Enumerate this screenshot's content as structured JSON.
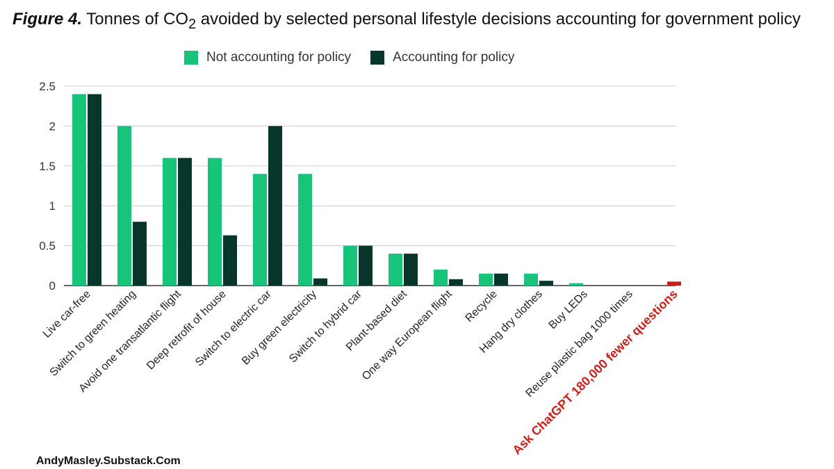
{
  "title": {
    "figure_label": "Figure 4.",
    "text_before": "Tonnes of CO",
    "subscript": "2",
    "text_after": " avoided by selected personal lifestyle decisions accounting for government policy"
  },
  "credit": "AndyMasley.Substack.Com",
  "colors": {
    "not_accounting": "#17c47a",
    "accounting": "#06372a",
    "highlight": "#cc1f1a",
    "grid": "#cccccc",
    "axis_text": "#333333"
  },
  "chart_data": {
    "type": "bar",
    "title": "Tonnes of CO₂ avoided by selected personal lifestyle decisions accounting for government policy",
    "xlabel": "",
    "ylabel": "",
    "ylim": [
      0,
      2.5
    ],
    "yticks": [
      "0",
      "0.5",
      "1",
      "1.5",
      "2",
      "2.5"
    ],
    "grid": true,
    "legend_position": "top",
    "categories": [
      "Live car-free",
      "Switch to green heating",
      "Avoid one transatlantic flight",
      "Deep retrofit of house",
      "Switch to electric car",
      "Buy green electricity",
      "Switch to hybrid car",
      "Plant-based diet",
      "One way European flight",
      "Recycle",
      "Hang dry clothes",
      "Buy LEDs",
      "Reuse plastic bag 1000 times",
      "Ask ChatGPT 180,000 fewer questions"
    ],
    "highlight_category": "Ask ChatGPT 180,000 fewer questions",
    "series": [
      {
        "name": "Not accounting for policy",
        "values": [
          2.4,
          2.0,
          1.6,
          1.6,
          1.4,
          1.4,
          0.5,
          0.4,
          0.2,
          0.15,
          0.15,
          0.03,
          0.0,
          0.05
        ]
      },
      {
        "name": "Accounting for policy",
        "values": [
          2.4,
          0.8,
          1.6,
          0.63,
          2.0,
          0.09,
          0.5,
          0.4,
          0.08,
          0.15,
          0.06,
          0.0,
          0.0,
          0.0
        ]
      }
    ]
  }
}
